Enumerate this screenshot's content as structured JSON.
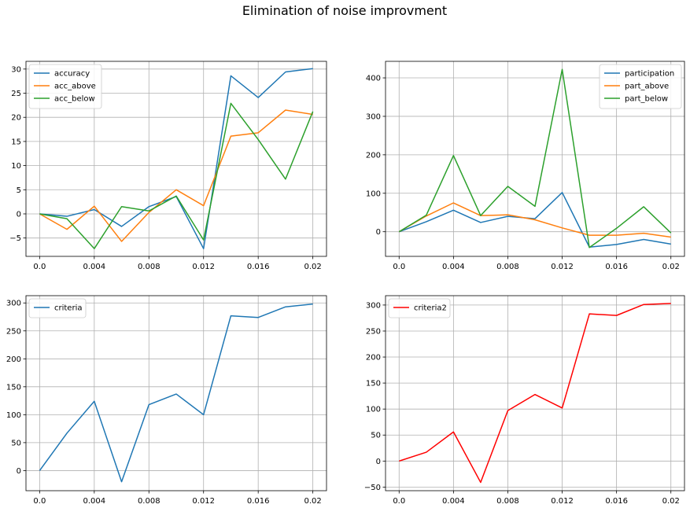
{
  "figure": {
    "title": "Elimination of noise improvment"
  },
  "chart_data": [
    {
      "type": "line",
      "x": [
        0.0,
        0.002,
        0.004,
        0.006,
        0.008,
        0.01,
        0.012,
        0.014,
        0.016,
        0.018,
        0.02
      ],
      "xticks": [
        0.0,
        0.004,
        0.008,
        0.012,
        0.016,
        0.02
      ],
      "xtick_labels": [
        "0.0",
        "0.004",
        "0.008",
        "0.012",
        "0.016",
        "0.02"
      ],
      "xlim": [
        -0.001,
        0.021
      ],
      "ylim": [
        -8.8,
        31.6
      ],
      "yticks": [
        -5,
        0,
        5,
        10,
        15,
        20,
        25,
        30
      ],
      "ytick_labels": [
        "−5",
        "0",
        "5",
        "10",
        "15",
        "20",
        "25",
        "30"
      ],
      "grid": true,
      "legend_position": "top-left",
      "series": [
        {
          "name": "accuracy",
          "color": "#1f77b4",
          "values": [
            0.0,
            -0.5,
            0.9,
            -2.6,
            1.5,
            3.6,
            -7.2,
            28.6,
            24.1,
            29.4,
            30.1
          ]
        },
        {
          "name": "acc_above",
          "color": "#ff7f0e",
          "values": [
            0.0,
            -3.2,
            1.6,
            -5.7,
            0.3,
            5.0,
            1.7,
            16.1,
            16.8,
            21.5,
            20.6
          ]
        },
        {
          "name": "acc_below",
          "color": "#2ca02c",
          "values": [
            0.0,
            -1.0,
            -7.2,
            1.5,
            0.6,
            3.7,
            -5.4,
            22.9,
            15.4,
            7.2,
            21.2
          ]
        }
      ]
    },
    {
      "type": "line",
      "x": [
        0.0,
        0.002,
        0.004,
        0.006,
        0.008,
        0.01,
        0.012,
        0.014,
        0.016,
        0.018,
        0.02
      ],
      "xticks": [
        0.0,
        0.004,
        0.008,
        0.012,
        0.016,
        0.02
      ],
      "xtick_labels": [
        "0.0",
        "0.004",
        "0.008",
        "0.012",
        "0.016",
        "0.02"
      ],
      "xlim": [
        -0.001,
        0.021
      ],
      "ylim": [
        -64,
        443
      ],
      "yticks": [
        0,
        100,
        200,
        300,
        400
      ],
      "ytick_labels": [
        "0",
        "100",
        "200",
        "300",
        "400"
      ],
      "grid": true,
      "legend_position": "top-right",
      "series": [
        {
          "name": "participation",
          "color": "#1f77b4",
          "values": [
            0,
            26,
            56,
            24,
            40,
            34,
            102,
            -40,
            -33,
            -20,
            -32
          ]
        },
        {
          "name": "part_above",
          "color": "#ff7f0e",
          "values": [
            0,
            41,
            75,
            42,
            44,
            31,
            10,
            -9,
            -9,
            -4,
            -14
          ]
        },
        {
          "name": "part_below",
          "color": "#2ca02c",
          "values": [
            0,
            43,
            198,
            42,
            118,
            66,
            422,
            -41,
            9,
            65,
            -3
          ]
        }
      ]
    },
    {
      "type": "line",
      "x": [
        0.0,
        0.002,
        0.004,
        0.006,
        0.008,
        0.01,
        0.012,
        0.014,
        0.016,
        0.018,
        0.02
      ],
      "xticks": [
        0.0,
        0.004,
        0.008,
        0.012,
        0.016,
        0.02
      ],
      "xtick_labels": [
        "0.0",
        "0.004",
        "0.008",
        "0.012",
        "0.016",
        "0.02"
      ],
      "xlim": [
        -0.001,
        0.021
      ],
      "ylim": [
        -36,
        313
      ],
      "yticks": [
        0,
        50,
        100,
        150,
        200,
        250,
        300
      ],
      "ytick_labels": [
        "0",
        "50",
        "100",
        "150",
        "200",
        "250",
        "300"
      ],
      "grid": true,
      "legend_position": "top-left",
      "series": [
        {
          "name": "criteria",
          "color": "#1f77b4",
          "values": [
            0,
            67,
            124,
            -20,
            118,
            137,
            100,
            277,
            274,
            293,
            298
          ]
        }
      ]
    },
    {
      "type": "line",
      "x": [
        0.0,
        0.002,
        0.004,
        0.006,
        0.008,
        0.01,
        0.012,
        0.014,
        0.016,
        0.018,
        0.02
      ],
      "xticks": [
        0.0,
        0.004,
        0.008,
        0.012,
        0.016,
        0.02
      ],
      "xtick_labels": [
        "0.0",
        "0.004",
        "0.008",
        "0.012",
        "0.016",
        "0.02"
      ],
      "xlim": [
        -0.001,
        0.021
      ],
      "ylim": [
        -57,
        318
      ],
      "yticks": [
        -50,
        0,
        50,
        100,
        150,
        200,
        250,
        300
      ],
      "ytick_labels": [
        "−50",
        "0",
        "50",
        "100",
        "150",
        "200",
        "250",
        "300"
      ],
      "grid": true,
      "legend_position": "top-left",
      "series": [
        {
          "name": "criteria2",
          "color": "#ff0000",
          "values": [
            0,
            17,
            56,
            -41,
            97,
            128,
            102,
            283,
            280,
            301,
            303
          ]
        }
      ]
    }
  ]
}
